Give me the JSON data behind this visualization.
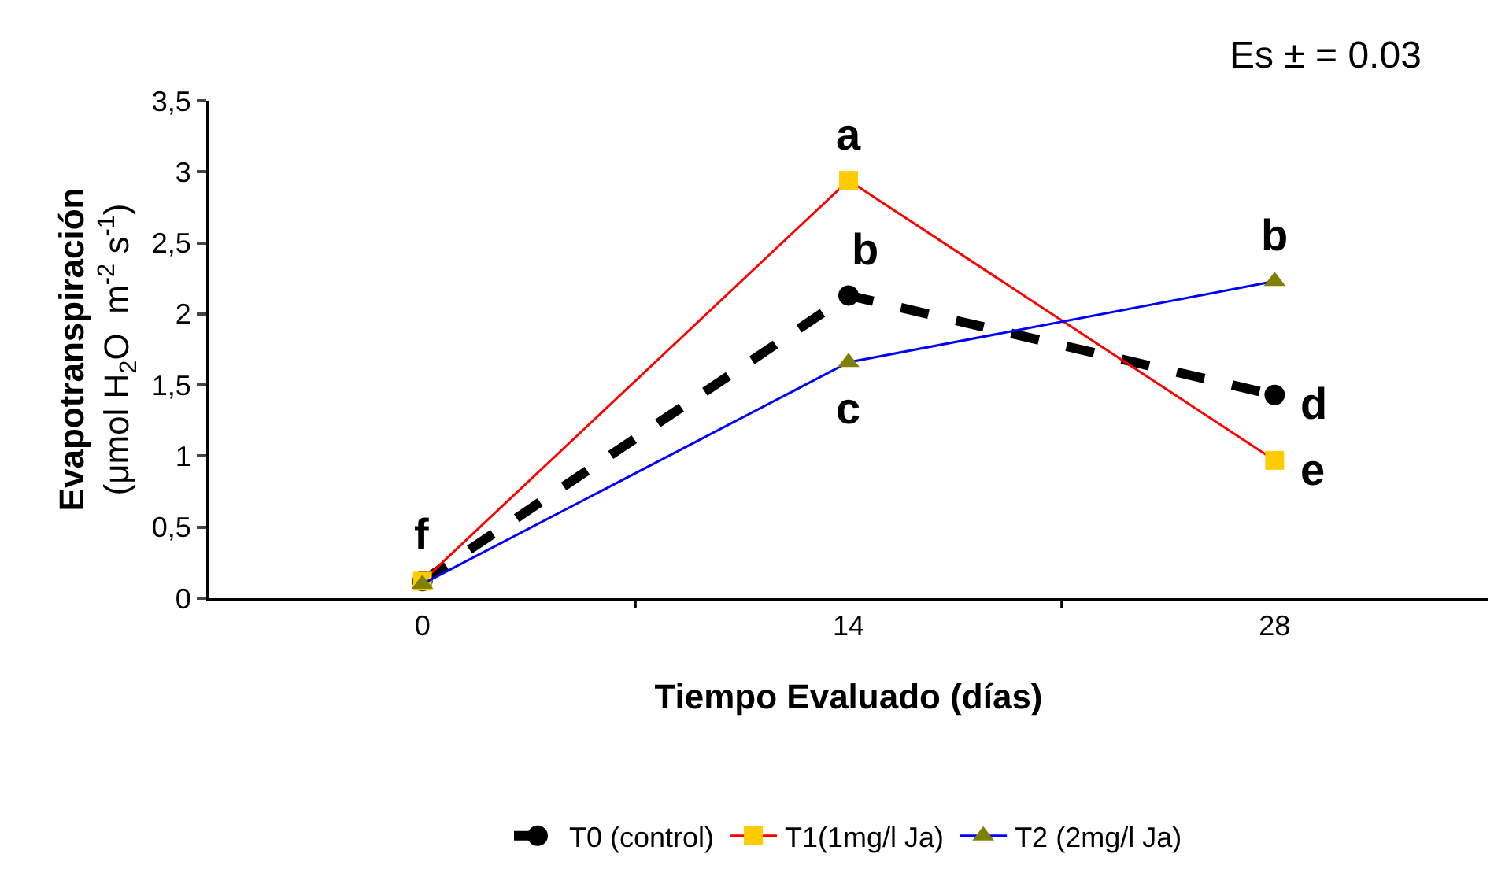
{
  "chart_data": {
    "type": "line",
    "xlabel": "Tiempo Evaluado (días)",
    "ylabel": "Evapotranspiración\n(μmol H$_{2}$O  m$^{-2}$ s$^{-1}$)",
    "categories": [
      "0",
      "14",
      "28"
    ],
    "series": [
      {
        "name": "T0 (control)",
        "color": "#000000",
        "colors": [
          "#000000",
          "#000000",
          "#000000"
        ],
        "values": [
          0.12,
          2.13,
          1.43
        ],
        "marker": "circle",
        "line_style": "dashed"
      },
      {
        "name": "T1(1mg/l Ja)",
        "color": "#ff0000",
        "colors": [
          "#ffcc00",
          "#ffcc00",
          "#ffcc00"
        ],
        "values": [
          0.12,
          2.94,
          0.97
        ],
        "marker": "square",
        "line_style": "solid"
      },
      {
        "name": "T2 (2mg/l Ja)",
        "color": "#0000ff",
        "colors": [
          "#808000",
          "#808000",
          "#808000"
        ],
        "values": [
          0.1,
          1.66,
          2.23
        ],
        "marker": "triangle",
        "line_style": "solid"
      }
    ],
    "ylim": [
      0,
      3.5
    ],
    "yticks": [
      0,
      {
        "value": 0.5,
        "label": "0,5"
      },
      1,
      {
        "value": 1.5,
        "label": "1,5"
      },
      2,
      {
        "value": 2.5,
        "label": "2,5"
      },
      3,
      {
        "value": 3.5,
        "label": "3,5"
      }
    ],
    "legend": "bottom",
    "annotations": [
      "Es ± = 0.03",
      {
        "text": "f",
        "x": "0",
        "y": 0.12
      },
      {
        "text": "a",
        "x": "14",
        "y": 2.94
      },
      {
        "text": "b",
        "x": "14",
        "y": 2.13
      },
      {
        "text": "c",
        "x": "14",
        "y": 1.66
      },
      {
        "text": "b",
        "x": "28",
        "y": 2.23
      },
      {
        "text": "d",
        "x": "28",
        "y": 1.43
      },
      {
        "text": "e",
        "x": "28",
        "y": 0.97
      }
    ]
  }
}
